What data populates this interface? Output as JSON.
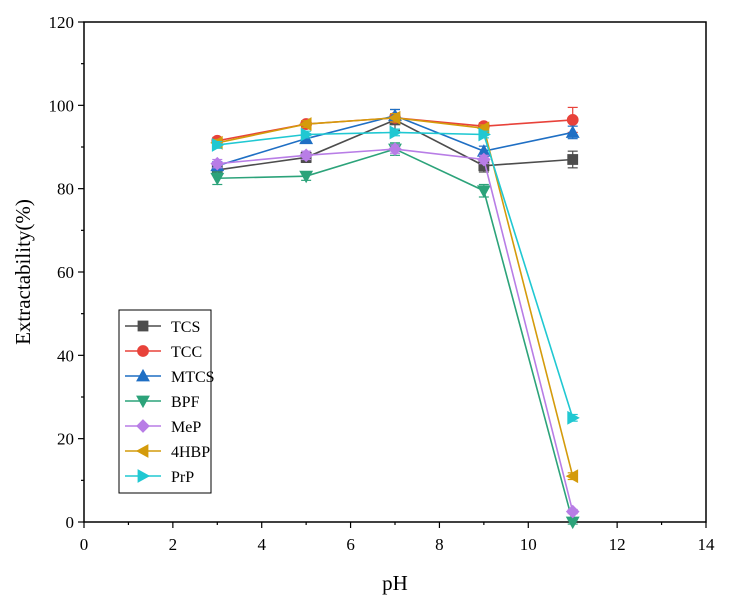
{
  "chart_data": {
    "type": "line",
    "title": "",
    "xlabel": "pH",
    "ylabel": "Extractability(%)",
    "xlim": [
      0,
      14
    ],
    "ylim": [
      0,
      120
    ],
    "xticks": [
      0,
      2,
      4,
      6,
      8,
      10,
      12,
      14
    ],
    "yticks": [
      0,
      20,
      40,
      60,
      80,
      100,
      120
    ],
    "x": [
      3,
      5,
      7,
      9,
      11
    ],
    "legend_position": "bottom-left",
    "series": [
      {
        "name": "TCS",
        "values": [
          84.5,
          87.5,
          96.5,
          85.5,
          87.0
        ],
        "errors": [
          1.0,
          1.2,
          2.5,
          1.5,
          2.0
        ],
        "color": "#4d4d4d",
        "marker": "square"
      },
      {
        "name": "TCC",
        "values": [
          91.5,
          95.5,
          97.0,
          95.0,
          96.5
        ],
        "errors": [
          0.8,
          0.8,
          1.0,
          0.8,
          3.0
        ],
        "color": "#e8423a",
        "marker": "circle"
      },
      {
        "name": "MTCS",
        "values": [
          85.5,
          92.0,
          97.5,
          89.0,
          93.5
        ],
        "errors": [
          1.0,
          1.0,
          1.5,
          1.2,
          1.5
        ],
        "color": "#1f6fc4",
        "marker": "triangle-up"
      },
      {
        "name": "BPF",
        "values": [
          82.5,
          83.0,
          89.5,
          79.5,
          0.0
        ],
        "errors": [
          1.5,
          1.0,
          1.5,
          1.5,
          0.5
        ],
        "color": "#2ca37a",
        "marker": "triangle-down"
      },
      {
        "name": "MeP",
        "values": [
          86.0,
          88.0,
          89.5,
          87.0,
          2.5
        ],
        "errors": [
          1.0,
          1.0,
          1.0,
          1.0,
          0.5
        ],
        "color": "#b87de6",
        "marker": "diamond"
      },
      {
        "name": "4HBP",
        "values": [
          91.0,
          95.5,
          97.0,
          94.5,
          11.0
        ],
        "errors": [
          0.8,
          0.8,
          1.0,
          0.8,
          0.8
        ],
        "color": "#d49b0b",
        "marker": "triangle-left"
      },
      {
        "name": "PrP",
        "values": [
          90.5,
          93.0,
          93.5,
          93.0,
          25.0
        ],
        "errors": [
          0.8,
          0.8,
          0.8,
          0.8,
          0.8
        ],
        "color": "#20c8d2",
        "marker": "triangle-right"
      }
    ]
  }
}
